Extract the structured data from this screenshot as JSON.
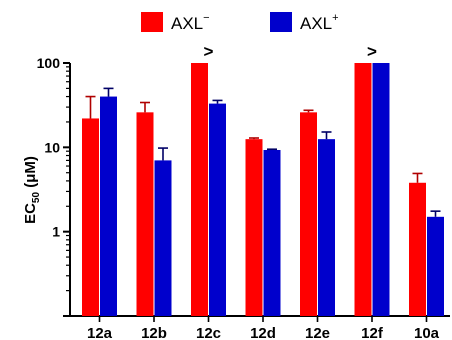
{
  "chart_data": {
    "type": "bar",
    "y_scale": "log",
    "ylim": [
      0.1,
      100
    ],
    "ylabel": {
      "main": "EC",
      "sub": "50",
      "rest": " (μM)"
    },
    "y_ticks": [
      {
        "value": 1,
        "label": "1"
      },
      {
        "value": 10,
        "label": "10"
      },
      {
        "value": 100,
        "label": "100"
      }
    ],
    "categories": [
      "12a",
      "12b",
      "12c",
      "12d",
      "12e",
      "12f",
      "10a"
    ],
    "series": [
      {
        "name": "AXL",
        "superscript": "−",
        "color": "#ff0000",
        "values": [
          22,
          26,
          100,
          12.5,
          26,
          100,
          3.8
        ],
        "errors": [
          18,
          8,
          0,
          0.4,
          1.5,
          0,
          1.1
        ]
      },
      {
        "name": "AXL",
        "superscript": "+",
        "color": "#0000cc",
        "values": [
          40,
          7,
          33,
          9.3,
          12.5,
          100,
          1.5
        ],
        "errors": [
          10,
          2.8,
          3,
          0.2,
          2.7,
          0,
          0.25
        ]
      }
    ],
    "annotations": [
      {
        "category": "12c",
        "text": ">"
      },
      {
        "category": "12f",
        "text": ">"
      }
    ],
    "legend_position": "top"
  }
}
